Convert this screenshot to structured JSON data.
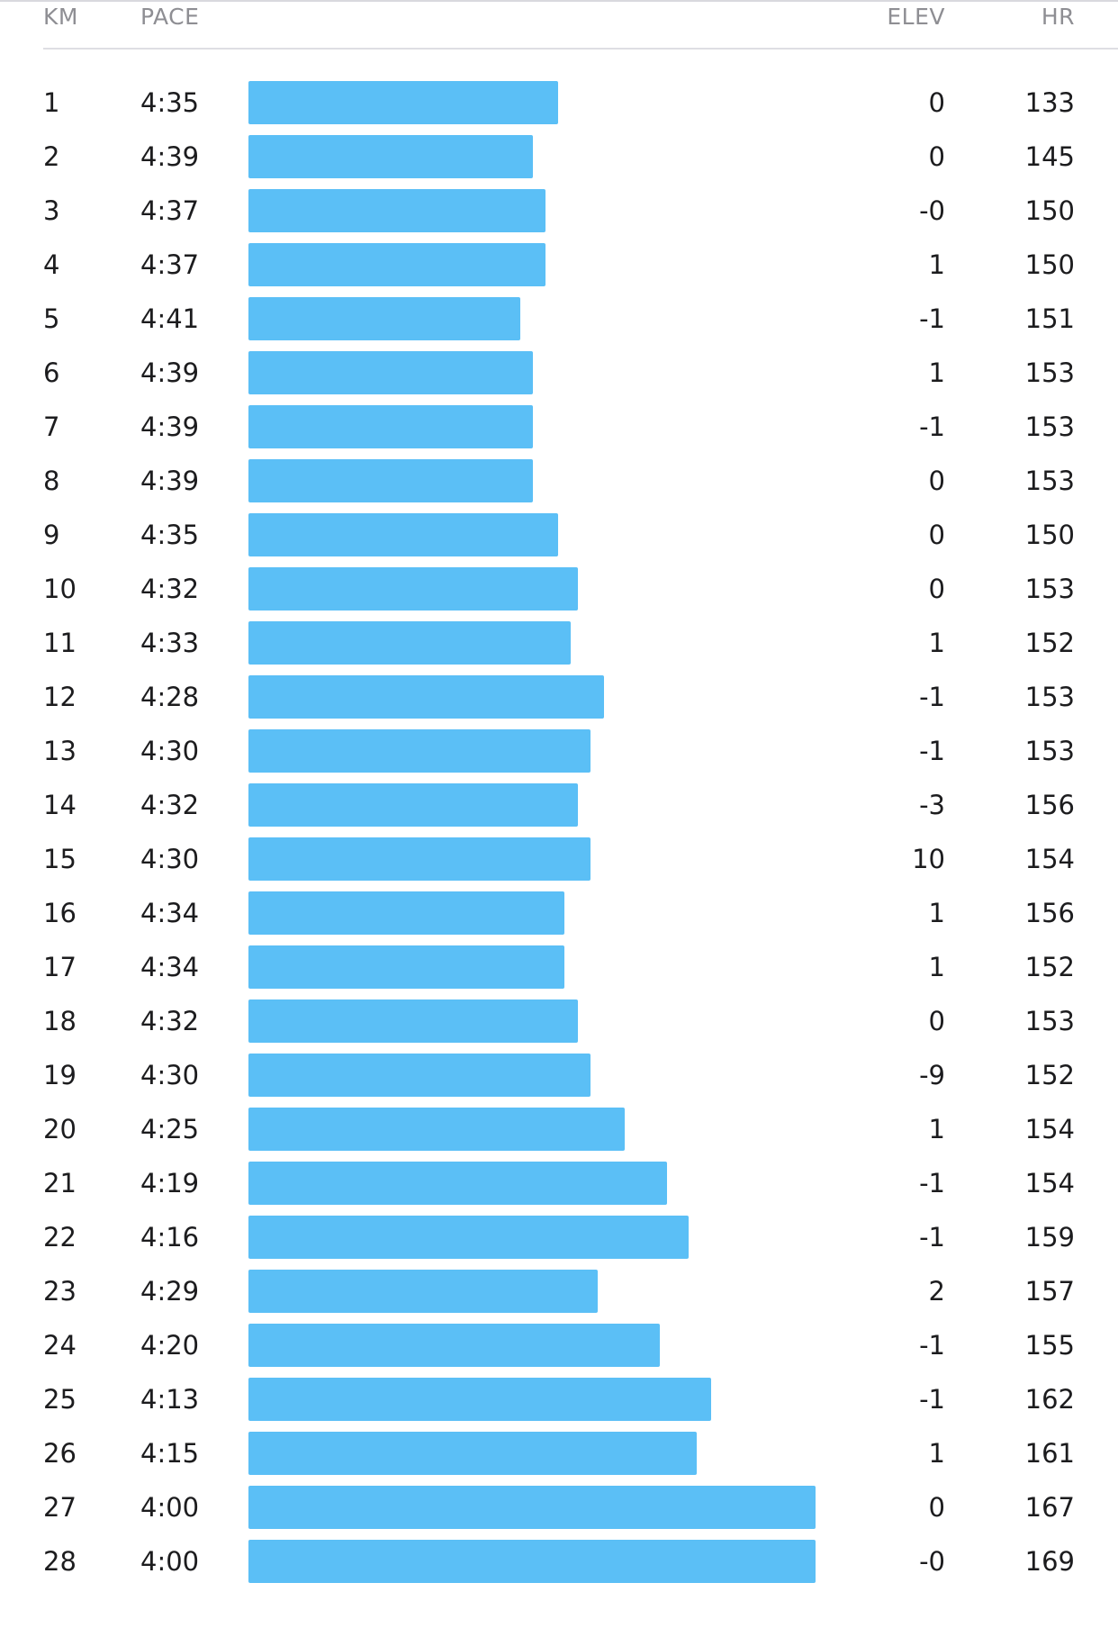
{
  "header": {
    "km": "KM",
    "pace": "PACE",
    "elev": "ELEV",
    "hr": "HR"
  },
  "colors": {
    "bar": "#5bbff6",
    "header_text": "#8e8e93",
    "row_text": "#1c1c1e"
  },
  "chart_data": {
    "type": "bar",
    "orientation": "horizontal",
    "categories": [
      "1",
      "2",
      "3",
      "4",
      "5",
      "6",
      "7",
      "8",
      "9",
      "10",
      "11",
      "12",
      "13",
      "14",
      "15",
      "16",
      "17",
      "18",
      "19",
      "20",
      "21",
      "22",
      "23",
      "24",
      "25",
      "26",
      "27",
      "28"
    ],
    "series": [
      {
        "values": [
          "4:35",
          "4:39",
          "4:37",
          "4:37",
          "4:41",
          "4:39",
          "4:39",
          "4:39",
          "4:35",
          "4:32",
          "4:33",
          "4:28",
          "4:30",
          "4:32",
          "4:30",
          "4:34",
          "4:34",
          "4:32",
          "4:30",
          "4:25",
          "4:19",
          "4:16",
          "4:29",
          "4:20",
          "4:13",
          "4:15",
          "4:00",
          "4:00"
        ]
      }
    ]
  },
  "splits": [
    {
      "km": "1",
      "pace": "4:35",
      "elev": "0",
      "hr": "133"
    },
    {
      "km": "2",
      "pace": "4:39",
      "elev": "0",
      "hr": "145"
    },
    {
      "km": "3",
      "pace": "4:37",
      "elev": "-0",
      "hr": "150"
    },
    {
      "km": "4",
      "pace": "4:37",
      "elev": "1",
      "hr": "150"
    },
    {
      "km": "5",
      "pace": "4:41",
      "elev": "-1",
      "hr": "151"
    },
    {
      "km": "6",
      "pace": "4:39",
      "elev": "1",
      "hr": "153"
    },
    {
      "km": "7",
      "pace": "4:39",
      "elev": "-1",
      "hr": "153"
    },
    {
      "km": "8",
      "pace": "4:39",
      "elev": "0",
      "hr": "153"
    },
    {
      "km": "9",
      "pace": "4:35",
      "elev": "0",
      "hr": "150"
    },
    {
      "km": "10",
      "pace": "4:32",
      "elev": "0",
      "hr": "153"
    },
    {
      "km": "11",
      "pace": "4:33",
      "elev": "1",
      "hr": "152"
    },
    {
      "km": "12",
      "pace": "4:28",
      "elev": "-1",
      "hr": "153"
    },
    {
      "km": "13",
      "pace": "4:30",
      "elev": "-1",
      "hr": "153"
    },
    {
      "km": "14",
      "pace": "4:32",
      "elev": "-3",
      "hr": "156"
    },
    {
      "km": "15",
      "pace": "4:30",
      "elev": "10",
      "hr": "154"
    },
    {
      "km": "16",
      "pace": "4:34",
      "elev": "1",
      "hr": "156"
    },
    {
      "km": "17",
      "pace": "4:34",
      "elev": "1",
      "hr": "152"
    },
    {
      "km": "18",
      "pace": "4:32",
      "elev": "0",
      "hr": "153"
    },
    {
      "km": "19",
      "pace": "4:30",
      "elev": "-9",
      "hr": "152"
    },
    {
      "km": "20",
      "pace": "4:25",
      "elev": "1",
      "hr": "154"
    },
    {
      "km": "21",
      "pace": "4:19",
      "elev": "-1",
      "hr": "154"
    },
    {
      "km": "22",
      "pace": "4:16",
      "elev": "-1",
      "hr": "159"
    },
    {
      "km": "23",
      "pace": "4:29",
      "elev": "2",
      "hr": "157"
    },
    {
      "km": "24",
      "pace": "4:20",
      "elev": "-1",
      "hr": "155"
    },
    {
      "km": "25",
      "pace": "4:13",
      "elev": "-1",
      "hr": "162"
    },
    {
      "km": "26",
      "pace": "4:15",
      "elev": "1",
      "hr": "161"
    },
    {
      "km": "27",
      "pace": "4:00",
      "elev": "0",
      "hr": "167"
    },
    {
      "km": "28",
      "pace": "4:00",
      "elev": "-0",
      "hr": "169"
    }
  ]
}
